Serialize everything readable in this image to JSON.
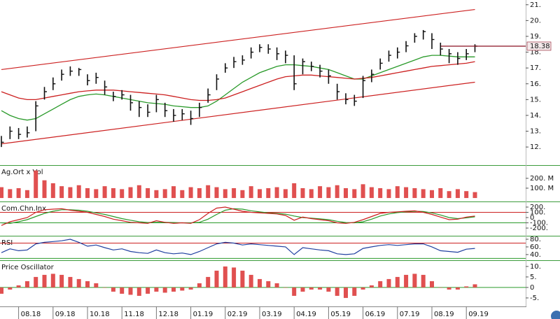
{
  "chart_data": [
    {
      "type": "hlc",
      "color": "#111111",
      "ylim": [
        10.9,
        21.3
      ],
      "yticks": [
        {
          "value": 12,
          "label": "12."
        },
        {
          "value": 13,
          "label": "13."
        },
        {
          "value": 14,
          "label": "14."
        },
        {
          "value": 15,
          "label": "15."
        },
        {
          "value": 16,
          "label": "16."
        },
        {
          "value": 17,
          "label": "17."
        },
        {
          "value": 18,
          "label": "18."
        },
        {
          "value": 19,
          "label": "19."
        },
        {
          "value": 20,
          "label": "20."
        },
        {
          "value": 21,
          "label": "21."
        }
      ],
      "high": [
        12.7,
        13.3,
        13.2,
        13.3,
        14.9,
        15.8,
        16.4,
        16.9,
        17.1,
        17.0,
        16.6,
        16.7,
        16.2,
        15.5,
        15.6,
        15.3,
        14.9,
        14.7,
        15.3,
        14.8,
        14.4,
        14.4,
        14.3,
        14.8,
        15.7,
        16.6,
        17.3,
        17.7,
        17.8,
        18.3,
        18.5,
        18.5,
        18.3,
        18.1,
        17.8,
        17.6,
        17.4,
        17.2,
        16.9,
        16.0,
        15.4,
        15.3,
        16.5,
        16.9,
        17.6,
        18.1,
        18.3,
        18.7,
        19.2,
        19.4,
        19.2,
        18.6,
        18.2,
        18.0,
        18.2,
        18.5
      ],
      "low": [
        12.0,
        12.5,
        12.5,
        12.6,
        13.0,
        15.0,
        15.6,
        16.2,
        16.5,
        16.5,
        15.9,
        16.0,
        15.3,
        14.9,
        15.0,
        14.3,
        13.9,
        13.9,
        14.2,
        13.9,
        13.6,
        13.7,
        13.4,
        13.9,
        14.8,
        15.6,
        16.7,
        17.0,
        17.2,
        17.6,
        18.0,
        17.9,
        17.5,
        17.3,
        15.6,
        16.6,
        16.8,
        16.4,
        16.0,
        15.0,
        14.7,
        14.6,
        15.1,
        16.1,
        16.9,
        17.4,
        17.6,
        18.0,
        18.6,
        18.8,
        18.2,
        17.8,
        17.3,
        17.2,
        17.5,
        18.0
      ],
      "close": [
        12.3,
        13.0,
        12.8,
        12.9,
        14.6,
        15.5,
        16.0,
        16.6,
        16.8,
        16.9,
        16.2,
        16.4,
        15.8,
        15.2,
        15.3,
        14.8,
        14.5,
        14.2,
        15.0,
        14.3,
        14.0,
        14.1,
        13.8,
        14.5,
        15.3,
        16.3,
        17.0,
        17.4,
        17.5,
        18.0,
        18.3,
        18.2,
        17.9,
        17.8,
        16.0,
        17.4,
        17.1,
        16.8,
        16.5,
        15.5,
        15.0,
        14.9,
        16.2,
        16.6,
        17.3,
        17.8,
        18.0,
        18.4,
        19.0,
        19.3,
        18.8,
        18.2,
        17.9,
        17.6,
        17.9,
        18.38
      ],
      "overlays": [
        {
          "color": "#2a9a2a",
          "values": [
            14.3,
            14.0,
            13.8,
            13.7,
            13.8,
            14.1,
            14.4,
            14.7,
            15.0,
            15.2,
            15.3,
            15.35,
            15.3,
            15.2,
            15.1,
            15.0,
            14.9,
            14.8,
            14.75,
            14.7,
            14.6,
            14.55,
            14.5,
            14.5,
            14.6,
            14.9,
            15.3,
            15.7,
            16.1,
            16.4,
            16.7,
            16.9,
            17.1,
            17.2,
            17.2,
            17.15,
            17.1,
            17.0,
            16.9,
            16.7,
            16.5,
            16.3,
            16.3,
            16.5,
            16.7,
            16.9,
            17.1,
            17.3,
            17.5,
            17.7,
            17.8,
            17.8,
            17.75,
            17.7,
            17.7,
            17.7
          ]
        },
        {
          "color": "#cc2020",
          "values": [
            15.5,
            15.3,
            15.1,
            15.0,
            15.0,
            15.1,
            15.2,
            15.3,
            15.4,
            15.5,
            15.55,
            15.6,
            15.6,
            15.6,
            15.55,
            15.5,
            15.45,
            15.4,
            15.35,
            15.3,
            15.2,
            15.1,
            15.0,
            14.95,
            14.95,
            15.0,
            15.1,
            15.3,
            15.5,
            15.7,
            15.9,
            16.1,
            16.3,
            16.45,
            16.5,
            16.55,
            16.55,
            16.5,
            16.45,
            16.4,
            16.35,
            16.3,
            16.35,
            16.4,
            16.5,
            16.6,
            16.7,
            16.8,
            16.9,
            17.0,
            17.1,
            17.15,
            17.2,
            17.25,
            17.3,
            17.4
          ]
        }
      ],
      "trend_lines": [
        {
          "color": "#cc2020",
          "values": [
            16.9,
            20.7
          ]
        },
        {
          "color": "#cc2020",
          "values": [
            12.2,
            16.1
          ]
        }
      ],
      "last_price": 18.38,
      "last_price_color": "#8a1020"
    },
    {
      "type": "bar",
      "title": "Ag.Ort x Vol",
      "color": "#e05050",
      "ylim": [
        -28,
        320
      ],
      "yticks": [
        {
          "value": 100,
          "label": "100. M"
        },
        {
          "value": 200,
          "label": "200. M"
        }
      ],
      "values": [
        110,
        90,
        100,
        80,
        280,
        180,
        150,
        120,
        110,
        130,
        100,
        90,
        120,
        100,
        90,
        110,
        130,
        100,
        80,
        90,
        120,
        80,
        110,
        100,
        130,
        110,
        90,
        100,
        80,
        120,
        90,
        100,
        110,
        90,
        150,
        100,
        90,
        120,
        110,
        130,
        100,
        90,
        140,
        110,
        100,
        90,
        120,
        110,
        100,
        90,
        80,
        100,
        70,
        90,
        70,
        60
      ]
    },
    {
      "type": "line",
      "title": "Com.Chn.Inx",
      "ylim": [
        -333,
        280
      ],
      "yticks": [
        {
          "value": -200,
          "label": "-200."
        },
        {
          "value": -100,
          "label": "-100."
        },
        0,
        {
          "value": 100,
          "label": "100."
        },
        {
          "value": 200,
          "label": "200."
        }
      ],
      "ref_lines": [
        {
          "value": 100,
          "color": "#cc2020"
        },
        {
          "value": -100,
          "color": "#2a9a2a"
        }
      ],
      "series": [
        {
          "color": "#2a9a2a",
          "values": [
            -100,
            -110,
            -80,
            -40,
            20,
            80,
            120,
            150,
            150,
            140,
            120,
            90,
            60,
            20,
            -20,
            -50,
            -80,
            -95,
            -90,
            -90,
            -95,
            -100,
            -100,
            -90,
            -30,
            60,
            140,
            170,
            160,
            130,
            110,
            90,
            80,
            65,
            30,
            0,
            -10,
            -25,
            -40,
            -70,
            -95,
            -100,
            -80,
            -30,
            30,
            70,
            95,
            110,
            120,
            115,
            90,
            50,
            0,
            -20,
            -5,
            15
          ]
        },
        {
          "color": "#cc2020",
          "values": [
            -150,
            -80,
            -40,
            0,
            100,
            150,
            160,
            170,
            140,
            120,
            100,
            60,
            20,
            -30,
            -60,
            -90,
            -100,
            -110,
            -60,
            -90,
            -110,
            -100,
            -110,
            -40,
            80,
            180,
            200,
            160,
            120,
            100,
            90,
            80,
            70,
            40,
            -50,
            10,
            -20,
            -40,
            -60,
            -100,
            -110,
            -90,
            -40,
            20,
            80,
            100,
            110,
            120,
            130,
            100,
            60,
            10,
            -40,
            -30,
            10,
            30
          ]
        }
      ]
    },
    {
      "type": "line",
      "title": "RSI",
      "ylim": [
        27,
        85.5
      ],
      "yticks": [
        {
          "value": 40,
          "label": "40."
        },
        {
          "value": 60,
          "label": "60."
        },
        {
          "value": 80,
          "label": "80."
        }
      ],
      "ref_lines": [
        {
          "value": 70,
          "color": "#cc2020"
        },
        {
          "value": 30,
          "color": "#2a9a2a"
        }
      ],
      "series": [
        {
          "color": "#2040a0",
          "values": [
            45,
            55,
            50,
            52,
            68,
            72,
            74,
            76,
            80,
            72,
            62,
            65,
            58,
            52,
            55,
            48,
            45,
            43,
            52,
            45,
            42,
            44,
            40,
            48,
            58,
            68,
            72,
            70,
            65,
            68,
            66,
            64,
            62,
            60,
            40,
            58,
            55,
            52,
            50,
            42,
            40,
            42,
            56,
            60,
            64,
            66,
            64,
            66,
            68,
            68,
            60,
            50,
            48,
            46,
            54,
            56
          ]
        }
      ]
    },
    {
      "type": "bar",
      "title": "Price Oscillator",
      "color": "#e05050",
      "ylim": [
        -8.7,
        12.3
      ],
      "yticks": [
        {
          "value": -5,
          "label": "-5."
        },
        0,
        {
          "value": 5,
          "label": "5."
        },
        {
          "value": 10,
          "label": "10."
        }
      ],
      "ref_lines": [
        {
          "value": 0,
          "color": "#2a9a2a"
        }
      ],
      "values": [
        -3,
        -1,
        1,
        3,
        5,
        6,
        6.5,
        6,
        5,
        4,
        3,
        2,
        0,
        -2,
        -3,
        -3.5,
        -4,
        -3,
        -2,
        -2.5,
        -2,
        -1.5,
        -1,
        2,
        5,
        8,
        10,
        9.5,
        8,
        6,
        4,
        3,
        2,
        0,
        -4,
        -2,
        -1,
        -1,
        -2,
        -4,
        -5,
        -4,
        -1,
        1,
        3,
        4,
        5,
        6,
        6.5,
        6,
        3,
        0,
        -1,
        -1,
        0.5,
        1.5
      ],
      "categories": [
        null,
        null,
        "08.18",
        null,
        null,
        null,
        "09.18",
        null,
        null,
        null,
        "10.18",
        null,
        null,
        null,
        "11.18",
        null,
        null,
        null,
        "12.18",
        null,
        null,
        null,
        "01.19",
        null,
        null,
        null,
        "02.19",
        null,
        null,
        null,
        "03.19",
        null,
        null,
        null,
        "04.19",
        null,
        null,
        null,
        "05.19",
        null,
        null,
        null,
        "06.19",
        null,
        null,
        null,
        "07.19",
        null,
        null,
        null,
        "08.19",
        null,
        null,
        null,
        "09.19",
        null
      ]
    }
  ]
}
